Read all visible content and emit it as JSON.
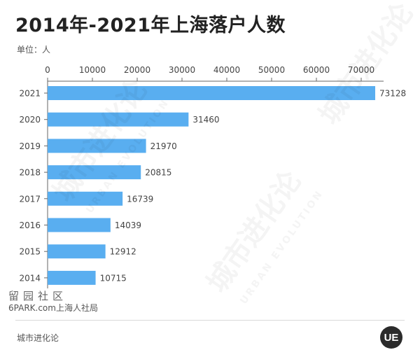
{
  "header": {
    "title": "2014年-2021年上海落户人数",
    "unit_label": "单位：人"
  },
  "chart_data": {
    "type": "bar",
    "orientation": "horizontal",
    "categories": [
      "2021",
      "2020",
      "2019",
      "2018",
      "2017",
      "2016",
      "2015",
      "2014"
    ],
    "values": [
      73128,
      31460,
      21970,
      20815,
      16739,
      14039,
      12912,
      10715
    ],
    "title": "2014年-2021年上海落户人数",
    "xlabel": "",
    "ylabel": "",
    "xlim": [
      0,
      75000
    ],
    "x_ticks": [
      0,
      10000,
      20000,
      30000,
      40000,
      50000,
      60000,
      70000
    ],
    "x_axis_position": "top",
    "grid": false,
    "bar_color": "#59aef0",
    "data_labels": true
  },
  "footer": {
    "source_stamp": "留园社区",
    "source_text": "6PARK.com上海人社局",
    "brand": "城市进化论",
    "logo_text": "UE"
  },
  "watermark": {
    "main": "城市进化论",
    "sub": "URBAN EVOLUTION"
  }
}
